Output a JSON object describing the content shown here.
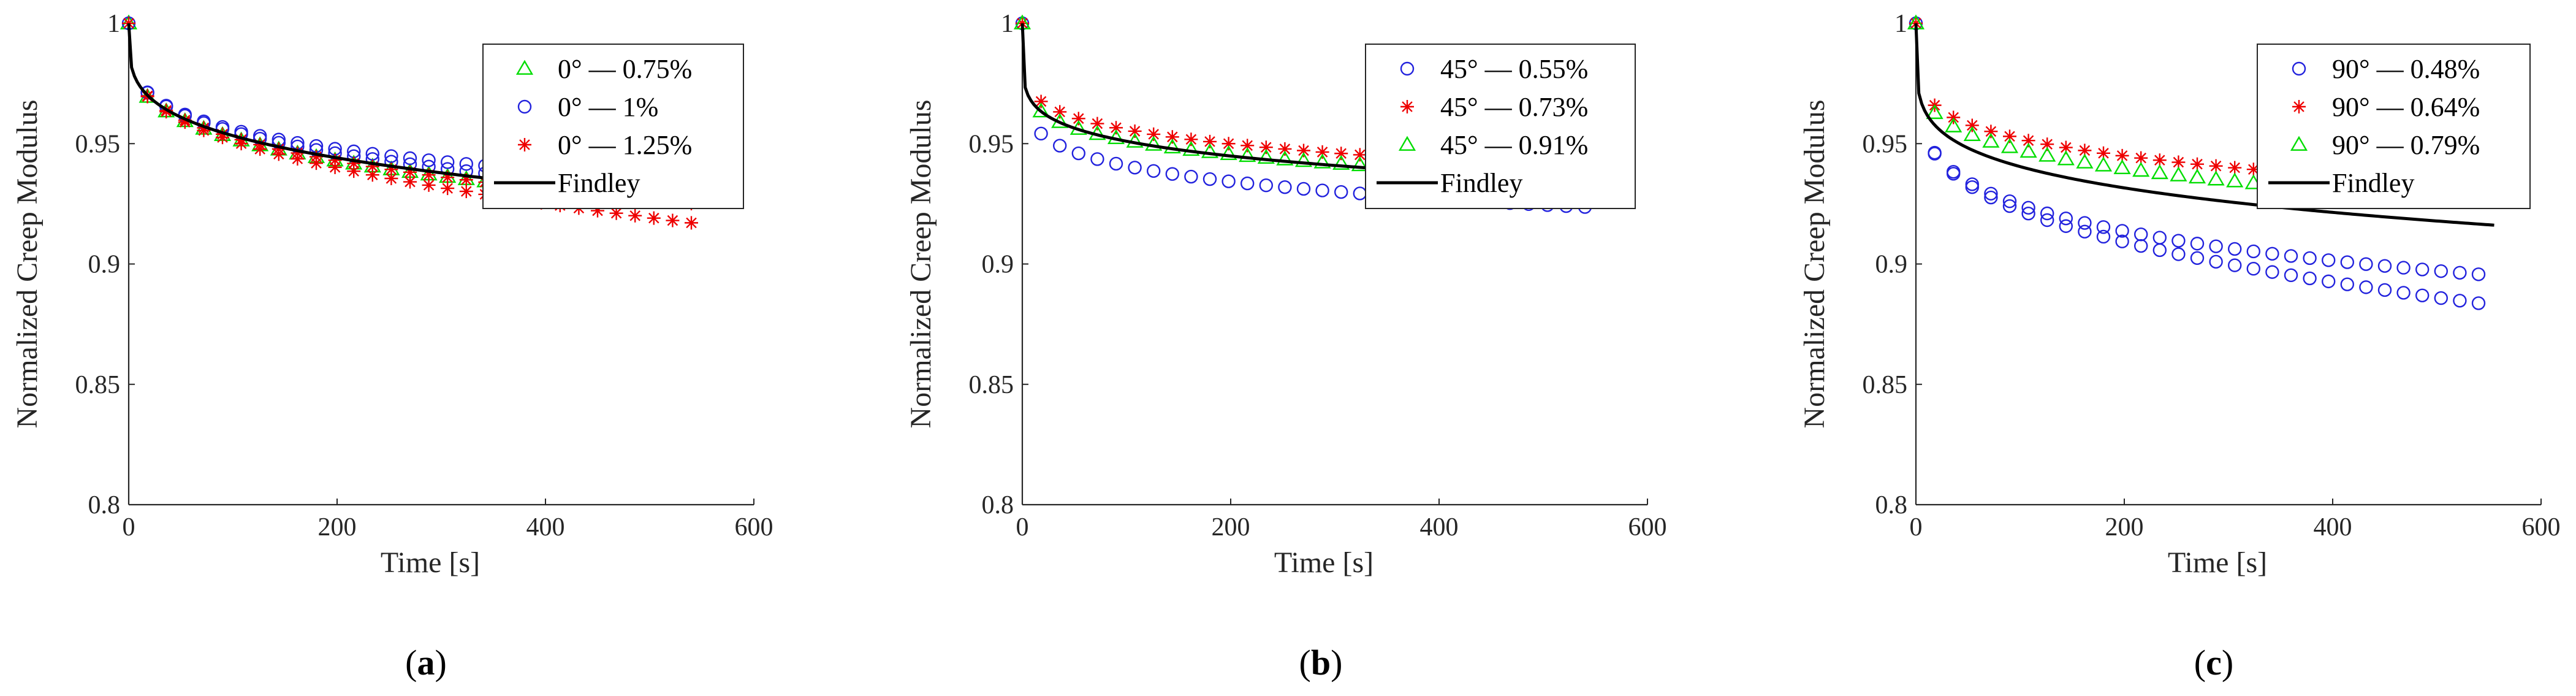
{
  "colors": {
    "green": "#00dd00",
    "blue": "#2222dd",
    "red": "#ee0000",
    "fit": "#000000",
    "axis": "#262626"
  },
  "chart_data": [
    {
      "type": "scatter",
      "caption": "(a)",
      "caption_letter": "a",
      "xlabel": "Time [s]",
      "ylabel": "Normalized Creep Modulus",
      "xlim": [
        0,
        600
      ],
      "ylim": [
        0.8,
        1
      ],
      "xticks": [
        0,
        200,
        400,
        600
      ],
      "yticks": [
        0.8,
        0.85,
        0.9,
        0.95,
        1
      ],
      "xtick_labels": [
        "0",
        "200",
        "400",
        "600"
      ],
      "ytick_labels": [
        "0.8",
        "0.85",
        "0.9",
        "0.95",
        "1"
      ],
      "legend_position": "top-right",
      "series": [
        {
          "name": "0° — 0.75%",
          "marker": "triangle",
          "color": "green",
          "stop": 540,
          "mode": "single",
          "a": 0.0144,
          "b": 0.26,
          "delta": 0.0,
          "spread": 0.0
        },
        {
          "name": "0° — 1%",
          "marker": "circle",
          "color": "blue",
          "stop": 540,
          "mode": "pair",
          "a": 0.0136,
          "b": 0.26,
          "delta": -0.002,
          "spread": 0.0025
        },
        {
          "name": "0° — 1.25%",
          "marker": "star",
          "color": "red",
          "stop": 540,
          "mode": "pair",
          "a": 0.0142,
          "b": 0.26,
          "delta": 0.006,
          "spread": 0.004
        }
      ],
      "fit": {
        "name": "Findley",
        "a": 0.0141,
        "b": 0.26,
        "tmax": 550
      }
    },
    {
      "type": "scatter",
      "caption": "(b)",
      "caption_letter": "b",
      "xlabel": "Time [s]",
      "ylabel": "Normalized Creep Modulus",
      "xlim": [
        0,
        600
      ],
      "ylim": [
        0.8,
        1
      ],
      "xticks": [
        0,
        200,
        400,
        600
      ],
      "yticks": [
        0.8,
        0.85,
        0.9,
        0.95,
        1
      ],
      "xtick_labels": [
        "0",
        "200",
        "400",
        "600"
      ],
      "ytick_labels": [
        "0.8",
        "0.85",
        "0.9",
        "0.95",
        "1"
      ],
      "legend_position": "top-right",
      "series": [
        {
          "name": "45° — 0.55%",
          "marker": "circle",
          "color": "blue",
          "stop": 540,
          "mode": "single",
          "a": 0.0297,
          "b": 0.15,
          "delta": 0.0,
          "spread": 0.0
        },
        {
          "name": "45° — 0.73%",
          "marker": "star",
          "color": "red",
          "stop": 540,
          "mode": "single",
          "a": 0.0193,
          "b": 0.18,
          "delta": 0.0,
          "spread": 0.0
        },
        {
          "name": "45° — 0.91%",
          "marker": "triangle",
          "color": "green",
          "stop": 540,
          "mode": "single",
          "a": 0.0227,
          "b": 0.165,
          "delta": 0.0,
          "spread": 0.0
        }
      ],
      "fit": {
        "name": "Findley",
        "a": 0.0224,
        "b": 0.17,
        "tmax": 555
      }
    },
    {
      "type": "scatter",
      "caption": "(c)",
      "caption_letter": "c",
      "xlabel": "Time [s]",
      "ylabel": "Normalized Creep Modulus",
      "xlim": [
        0,
        600
      ],
      "ylim": [
        0.8,
        1
      ],
      "xticks": [
        0,
        200,
        400,
        600
      ],
      "yticks": [
        0.8,
        0.85,
        0.9,
        0.95,
        1
      ],
      "xtick_labels": [
        "0",
        "200",
        "400",
        "600"
      ],
      "ytick_labels": [
        "0.8",
        "0.85",
        "0.9",
        "0.95",
        "1"
      ],
      "legend_position": "top-right",
      "series": [
        {
          "name": "90° — 0.48%",
          "marker": "circle",
          "color": "blue",
          "stop": 540,
          "mode": "pair",
          "a": 0.0302,
          "b": 0.2,
          "delta": 0.004,
          "spread": 0.006
        },
        {
          "name": "90° — 0.64%",
          "marker": "star",
          "color": "red",
          "stop": 540,
          "mode": "single",
          "a": 0.0191,
          "b": 0.2,
          "delta": 0.0,
          "spread": 0.0
        },
        {
          "name": "90° — 0.79%",
          "marker": "triangle",
          "color": "green",
          "stop": 540,
          "mode": "single",
          "a": 0.0209,
          "b": 0.2,
          "delta": 0.0,
          "spread": 0.0
        }
      ],
      "fit": {
        "name": "Findley",
        "a": 0.0237,
        "b": 0.2,
        "tmax": 555
      }
    }
  ]
}
